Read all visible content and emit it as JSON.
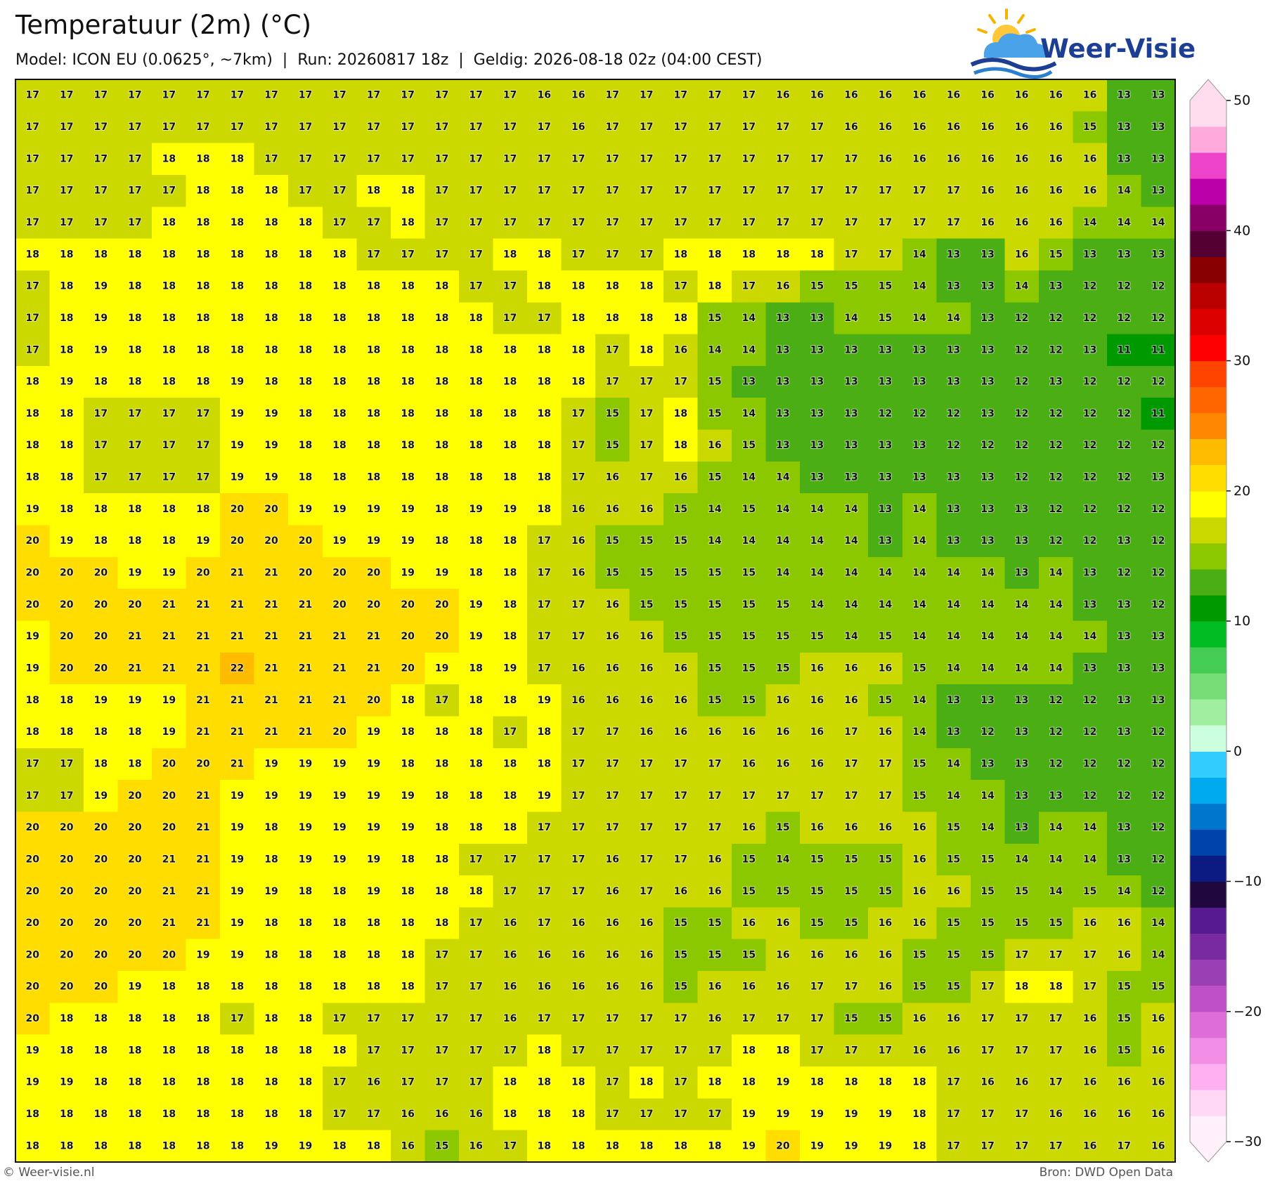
{
  "header": {
    "title": "Temperatuur (2m) (°C)",
    "subtitle": "Model: ICON EU (0.0625°, ~7km)  |  Run: 20260817 18z  |  Geldig: 2026-08-18 02z (04:00 CEST)"
  },
  "logo": {
    "text": "Weer-Visie"
  },
  "map": {
    "grid": [
      [
        17,
        17,
        17,
        17,
        17,
        17,
        17,
        17,
        17,
        17,
        17,
        17,
        17,
        17,
        17,
        16,
        16,
        17,
        17,
        17,
        17,
        17,
        16,
        16,
        16,
        16,
        16,
        16,
        16,
        16,
        16,
        16,
        13,
        13
      ],
      [
        17,
        17,
        17,
        17,
        17,
        17,
        17,
        17,
        17,
        17,
        17,
        17,
        17,
        17,
        17,
        17,
        16,
        17,
        17,
        17,
        17,
        17,
        17,
        17,
        16,
        16,
        16,
        16,
        16,
        16,
        16,
        15,
        13,
        13
      ],
      [
        17,
        17,
        17,
        17,
        18,
        18,
        18,
        17,
        17,
        17,
        17,
        17,
        17,
        17,
        17,
        17,
        17,
        17,
        17,
        17,
        17,
        17,
        17,
        17,
        17,
        16,
        16,
        16,
        16,
        16,
        16,
        16,
        13,
        13
      ],
      [
        17,
        17,
        17,
        17,
        17,
        18,
        18,
        18,
        17,
        17,
        18,
        18,
        17,
        17,
        17,
        17,
        17,
        17,
        17,
        17,
        17,
        17,
        17,
        17,
        17,
        17,
        17,
        17,
        16,
        16,
        16,
        16,
        14,
        13
      ],
      [
        17,
        17,
        17,
        17,
        18,
        18,
        18,
        18,
        18,
        17,
        17,
        18,
        17,
        17,
        17,
        17,
        17,
        17,
        17,
        17,
        17,
        17,
        17,
        17,
        17,
        17,
        17,
        17,
        16,
        16,
        16,
        14,
        14,
        14
      ],
      [
        18,
        18,
        18,
        18,
        18,
        18,
        18,
        18,
        18,
        18,
        17,
        17,
        17,
        17,
        18,
        18,
        17,
        17,
        17,
        18,
        18,
        18,
        18,
        18,
        17,
        17,
        14,
        13,
        13,
        16,
        15,
        13,
        13,
        13
      ],
      [
        17,
        18,
        19,
        18,
        18,
        18,
        18,
        18,
        18,
        18,
        18,
        18,
        18,
        17,
        17,
        18,
        18,
        18,
        18,
        17,
        18,
        17,
        16,
        15,
        15,
        15,
        14,
        13,
        13,
        14,
        13,
        12,
        12,
        12
      ],
      [
        17,
        18,
        19,
        18,
        18,
        18,
        18,
        18,
        18,
        18,
        18,
        18,
        18,
        18,
        17,
        17,
        18,
        18,
        18,
        18,
        15,
        14,
        13,
        13,
        14,
        15,
        14,
        14,
        13,
        12,
        12,
        12,
        12,
        12
      ],
      [
        17,
        18,
        19,
        18,
        18,
        18,
        18,
        18,
        18,
        18,
        18,
        18,
        18,
        18,
        18,
        18,
        18,
        17,
        18,
        16,
        14,
        14,
        13,
        13,
        13,
        13,
        13,
        13,
        13,
        12,
        12,
        13,
        11,
        11
      ],
      [
        18,
        19,
        18,
        18,
        18,
        18,
        19,
        18,
        18,
        18,
        18,
        18,
        18,
        18,
        18,
        18,
        18,
        17,
        17,
        17,
        15,
        13,
        13,
        13,
        13,
        13,
        13,
        13,
        13,
        12,
        13,
        12,
        12,
        12
      ],
      [
        18,
        18,
        17,
        17,
        17,
        17,
        19,
        19,
        18,
        18,
        18,
        18,
        18,
        18,
        18,
        18,
        17,
        15,
        17,
        18,
        15,
        14,
        13,
        13,
        13,
        12,
        12,
        12,
        13,
        12,
        12,
        12,
        12,
        11
      ],
      [
        18,
        18,
        17,
        17,
        17,
        17,
        19,
        19,
        18,
        18,
        18,
        18,
        18,
        18,
        18,
        18,
        17,
        15,
        17,
        18,
        16,
        15,
        13,
        13,
        13,
        13,
        13,
        12,
        12,
        12,
        12,
        12,
        12,
        12
      ],
      [
        18,
        18,
        17,
        17,
        17,
        17,
        19,
        19,
        18,
        18,
        18,
        18,
        18,
        18,
        18,
        18,
        17,
        16,
        17,
        16,
        15,
        14,
        14,
        13,
        13,
        13,
        13,
        13,
        13,
        12,
        12,
        12,
        12,
        13
      ],
      [
        19,
        18,
        18,
        18,
        18,
        18,
        20,
        20,
        19,
        19,
        19,
        19,
        18,
        19,
        19,
        18,
        16,
        16,
        16,
        15,
        14,
        15,
        14,
        14,
        14,
        13,
        14,
        13,
        13,
        13,
        12,
        12,
        12,
        12
      ],
      [
        20,
        19,
        18,
        18,
        18,
        19,
        20,
        20,
        20,
        19,
        19,
        19,
        18,
        18,
        18,
        17,
        16,
        15,
        15,
        15,
        14,
        14,
        14,
        14,
        14,
        13,
        14,
        13,
        13,
        13,
        12,
        12,
        13,
        12
      ],
      [
        20,
        20,
        20,
        19,
        19,
        20,
        21,
        21,
        20,
        20,
        20,
        19,
        19,
        18,
        18,
        17,
        16,
        15,
        15,
        15,
        15,
        15,
        14,
        14,
        14,
        14,
        14,
        14,
        14,
        13,
        14,
        13,
        12,
        12
      ],
      [
        20,
        20,
        20,
        20,
        21,
        21,
        21,
        21,
        21,
        20,
        20,
        20,
        20,
        19,
        18,
        17,
        17,
        16,
        15,
        15,
        15,
        15,
        15,
        14,
        14,
        14,
        14,
        14,
        14,
        14,
        14,
        13,
        13,
        12
      ],
      [
        19,
        20,
        20,
        21,
        21,
        21,
        21,
        21,
        21,
        21,
        21,
        20,
        20,
        19,
        18,
        17,
        17,
        16,
        16,
        15,
        15,
        15,
        15,
        15,
        14,
        15,
        14,
        14,
        14,
        14,
        14,
        14,
        13,
        13
      ],
      [
        19,
        20,
        20,
        21,
        21,
        21,
        22,
        21,
        21,
        21,
        21,
        20,
        19,
        18,
        19,
        17,
        16,
        16,
        16,
        16,
        15,
        15,
        15,
        16,
        16,
        16,
        15,
        14,
        14,
        14,
        14,
        13,
        13,
        13
      ],
      [
        18,
        18,
        19,
        19,
        19,
        21,
        21,
        21,
        21,
        21,
        20,
        18,
        17,
        18,
        18,
        19,
        16,
        16,
        16,
        16,
        15,
        15,
        16,
        16,
        16,
        15,
        14,
        13,
        13,
        13,
        12,
        12,
        13,
        13
      ],
      [
        18,
        18,
        18,
        18,
        19,
        21,
        21,
        21,
        21,
        20,
        19,
        18,
        18,
        18,
        17,
        18,
        17,
        17,
        16,
        16,
        16,
        16,
        16,
        16,
        17,
        16,
        14,
        13,
        12,
        13,
        12,
        12,
        13,
        12
      ],
      [
        17,
        17,
        18,
        18,
        20,
        20,
        21,
        19,
        19,
        19,
        19,
        18,
        18,
        18,
        18,
        18,
        17,
        17,
        17,
        17,
        17,
        16,
        16,
        16,
        17,
        17,
        15,
        14,
        13,
        13,
        12,
        12,
        12,
        12
      ],
      [
        17,
        17,
        19,
        20,
        20,
        21,
        19,
        19,
        19,
        19,
        19,
        19,
        18,
        18,
        18,
        19,
        17,
        17,
        17,
        17,
        17,
        17,
        17,
        17,
        17,
        17,
        15,
        14,
        14,
        13,
        13,
        12,
        12,
        12
      ],
      [
        20,
        20,
        20,
        20,
        20,
        21,
        19,
        18,
        19,
        19,
        19,
        19,
        18,
        18,
        18,
        17,
        17,
        17,
        17,
        17,
        17,
        16,
        15,
        16,
        16,
        16,
        16,
        15,
        14,
        13,
        14,
        14,
        13,
        12
      ],
      [
        20,
        20,
        20,
        20,
        21,
        21,
        19,
        18,
        19,
        19,
        19,
        18,
        18,
        17,
        17,
        17,
        17,
        16,
        17,
        17,
        16,
        15,
        14,
        15,
        15,
        15,
        16,
        15,
        15,
        14,
        14,
        14,
        13,
        12
      ],
      [
        20,
        20,
        20,
        20,
        21,
        21,
        19,
        19,
        18,
        18,
        19,
        18,
        18,
        18,
        17,
        17,
        17,
        16,
        17,
        16,
        16,
        15,
        15,
        15,
        15,
        15,
        16,
        16,
        15,
        15,
        14,
        15,
        14,
        12
      ],
      [
        20,
        20,
        20,
        20,
        21,
        21,
        19,
        18,
        18,
        18,
        18,
        18,
        18,
        17,
        16,
        17,
        16,
        16,
        16,
        15,
        15,
        16,
        16,
        15,
        15,
        16,
        16,
        15,
        15,
        15,
        15,
        16,
        16,
        14
      ],
      [
        20,
        20,
        20,
        20,
        20,
        19,
        19,
        18,
        18,
        18,
        18,
        18,
        17,
        17,
        16,
        16,
        16,
        16,
        16,
        15,
        15,
        15,
        16,
        16,
        16,
        16,
        15,
        15,
        15,
        17,
        17,
        17,
        16,
        14
      ],
      [
        20,
        20,
        20,
        19,
        18,
        18,
        18,
        18,
        18,
        18,
        18,
        18,
        17,
        17,
        16,
        16,
        16,
        16,
        16,
        15,
        16,
        16,
        16,
        17,
        17,
        16,
        15,
        15,
        17,
        18,
        18,
        17,
        15,
        15
      ],
      [
        20,
        18,
        18,
        18,
        18,
        18,
        17,
        18,
        18,
        17,
        17,
        17,
        17,
        17,
        16,
        17,
        17,
        17,
        17,
        17,
        16,
        17,
        17,
        17,
        15,
        15,
        16,
        16,
        17,
        17,
        17,
        16,
        15,
        16
      ],
      [
        19,
        18,
        18,
        18,
        18,
        18,
        18,
        18,
        18,
        18,
        17,
        17,
        17,
        17,
        17,
        18,
        17,
        17,
        17,
        17,
        17,
        18,
        18,
        17,
        17,
        17,
        16,
        16,
        17,
        17,
        17,
        16,
        15,
        16
      ],
      [
        19,
        19,
        18,
        18,
        18,
        18,
        18,
        18,
        18,
        17,
        16,
        17,
        17,
        17,
        18,
        18,
        18,
        17,
        18,
        17,
        18,
        18,
        19,
        18,
        18,
        18,
        18,
        17,
        16,
        16,
        17,
        16,
        16,
        16
      ],
      [
        18,
        18,
        18,
        18,
        18,
        18,
        18,
        18,
        18,
        17,
        17,
        16,
        16,
        16,
        18,
        18,
        18,
        17,
        17,
        17,
        17,
        19,
        19,
        19,
        19,
        19,
        18,
        17,
        17,
        17,
        16,
        16,
        16,
        16
      ],
      [
        18,
        18,
        18,
        18,
        18,
        18,
        18,
        19,
        19,
        18,
        18,
        16,
        15,
        16,
        17,
        18,
        18,
        18,
        18,
        18,
        18,
        19,
        20,
        19,
        19,
        19,
        18,
        17,
        17,
        17,
        17,
        16,
        17,
        16
      ]
    ]
  },
  "colorbar": {
    "lim": [
      -30,
      50
    ],
    "ticks": [
      {
        "value": -30,
        "label": "−30"
      },
      {
        "value": -20,
        "label": "−20"
      },
      {
        "value": -10,
        "label": "−10"
      },
      0,
      10,
      20,
      30,
      40,
      50
    ],
    "colors": [
      "#fff0fa",
      "#ffd8f5",
      "#ffb0f0",
      "#f28ee6",
      "#dd6ed9",
      "#c050c8",
      "#9b3fb5",
      "#7a2aa0",
      "#581a90",
      "#20083f",
      "#0a1a80",
      "#0044aa",
      "#0077cc",
      "#00aaee",
      "#33ccff",
      "#ccffdd",
      "#a0eea0",
      "#77dd77",
      "#44cc55",
      "#00bb22",
      "#009900",
      "#4aae14",
      "#8cc800",
      "#cbd900",
      "#ffff00",
      "#ffdd00",
      "#ffbb00",
      "#ff8800",
      "#ff6600",
      "#ff4400",
      "#ff0000",
      "#dd0000",
      "#bb0000",
      "#880000",
      "#550033",
      "#880066",
      "#bb00aa",
      "#ee44cc",
      "#ffaadd",
      "#ffddee"
    ]
  },
  "footer": {
    "left": "© Weer-visie.nl",
    "right": "Bron: DWD Open Data"
  }
}
